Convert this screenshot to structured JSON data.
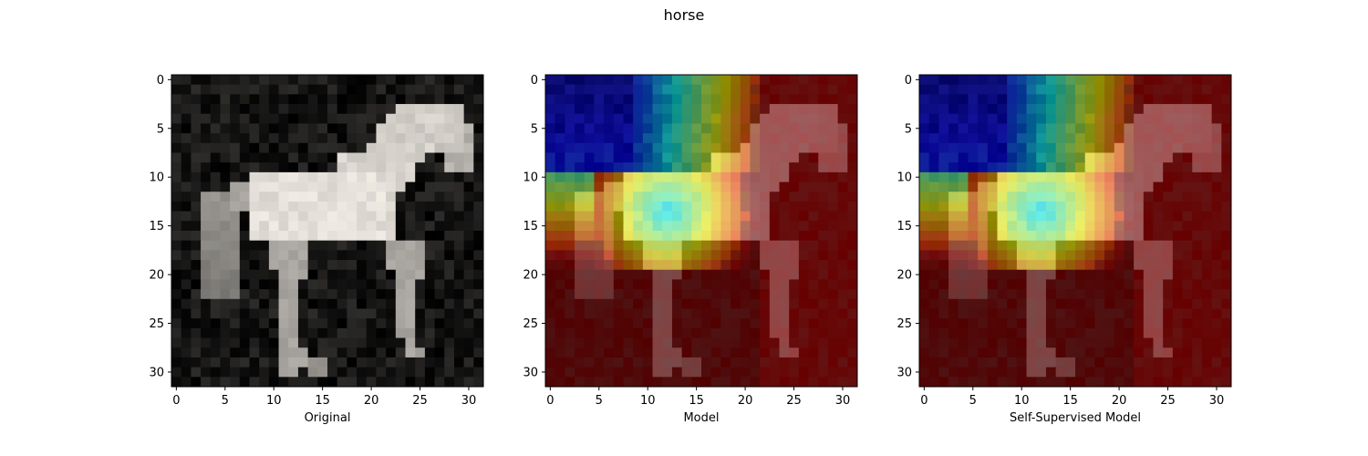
{
  "figure": {
    "title": "horse"
  },
  "chart_data": [
    {
      "type": "heatmap",
      "xlabel": "Original",
      "xticks": [
        0,
        5,
        10,
        15,
        20,
        25,
        30
      ],
      "yticks": [
        0,
        5,
        10,
        15,
        20,
        25,
        30
      ],
      "xlim": [
        -0.5,
        31.5
      ],
      "ylim": [
        31.5,
        -0.5
      ],
      "grid": false,
      "mode": "grayscale",
      "colors": {
        "background": "#161210",
        "subject": "#efefef"
      }
    },
    {
      "type": "heatmap",
      "xlabel": "Model",
      "xticks": [
        0,
        5,
        10,
        15,
        20,
        25,
        30
      ],
      "yticks": [
        0,
        5,
        10,
        15,
        20,
        25,
        30
      ],
      "xlim": [
        -0.5,
        31.5
      ],
      "ylim": [
        31.5,
        -0.5
      ],
      "grid": false,
      "mode": "attention-overlay",
      "colormap": "jet",
      "attention_peak": [
        12.5,
        14.0
      ]
    },
    {
      "type": "heatmap",
      "xlabel": "Self-Supervised Model",
      "xticks": [
        0,
        5,
        10,
        15,
        20,
        25,
        30
      ],
      "yticks": [
        0,
        5,
        10,
        15,
        20,
        25,
        30
      ],
      "xlim": [
        -0.5,
        31.5
      ],
      "ylim": [
        31.5,
        -0.5
      ],
      "grid": false,
      "mode": "attention-overlay",
      "colormap": "jet",
      "attention_peak": [
        12.5,
        14.0
      ]
    }
  ]
}
